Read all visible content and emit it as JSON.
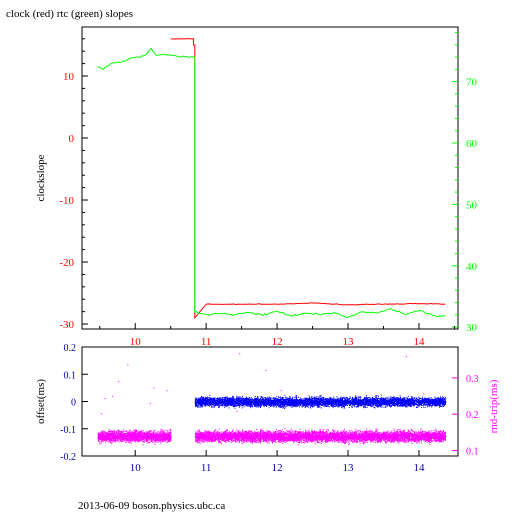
{
  "page": {
    "title": "clock (red) rtc (green) slopes",
    "footer": "2013-06-09 boson.physics.ubc.ca"
  },
  "colors": {
    "red": "#ff0000",
    "green": "#00ff00",
    "blue": "#0000ff",
    "magenta": "#ff00ff",
    "navy": "#0000aa",
    "axis": "#000000"
  },
  "chart_data": [
    {
      "type": "line",
      "title": "clock (red) rtc (green) slopes",
      "ylabel": "clockslope",
      "xlim": [
        9.25,
        14.55
      ],
      "ylim": [
        -30.8,
        17.9
      ],
      "y2lim": [
        29.7,
        78.9
      ],
      "x_ticks": [
        10,
        11,
        12,
        13,
        14
      ],
      "y_ticks": [
        -30,
        -20,
        -10,
        0,
        10
      ],
      "y2_ticks": [
        30,
        40,
        50,
        60,
        70
      ],
      "series": [
        {
          "color": "red",
          "axis": "left",
          "x": [
            10.5,
            10.82,
            10.82,
            10.84,
            10.84,
            11.0,
            11.5,
            12.0,
            12.5,
            13.0,
            13.5,
            14.0,
            14.37
          ],
          "y": [
            16.0,
            16.0,
            15.0,
            15.0,
            -29.0,
            -26.8,
            -26.8,
            -26.8,
            -26.6,
            -26.9,
            -26.8,
            -26.7,
            -26.8
          ]
        },
        {
          "color": "green",
          "axis": "right",
          "x": [
            9.47,
            9.55,
            9.65,
            9.75,
            9.85,
            9.95,
            10.05,
            10.15,
            10.22,
            10.3,
            10.4,
            10.5,
            10.6,
            10.7,
            10.8,
            10.84,
            10.84,
            11.0,
            11.2,
            11.4,
            11.6,
            11.8,
            12.0,
            12.2,
            12.4,
            12.6,
            12.8,
            13.0,
            13.2,
            13.4,
            13.6,
            13.8,
            14.0,
            14.2,
            14.37
          ],
          "y": [
            72.5,
            72.0,
            72.9,
            73.2,
            73.3,
            73.9,
            74.0,
            74.4,
            75.4,
            74.3,
            74.5,
            74.3,
            74.1,
            74.1,
            74.1,
            74.0,
            32.4,
            32.1,
            32.2,
            32.0,
            32.4,
            31.9,
            32.6,
            31.8,
            32.3,
            32.0,
            32.4,
            31.6,
            32.5,
            32.3,
            33.0,
            32.1,
            32.7,
            31.9,
            31.8
          ]
        }
      ]
    },
    {
      "type": "scatter",
      "ylabel": "offset(ms)",
      "y2label": "rnd-trip(ms)",
      "xlim": [
        9.25,
        14.55
      ],
      "ylim": [
        -0.2,
        0.2
      ],
      "y2lim": [
        0.085,
        0.385
      ],
      "x_ticks": [
        10,
        11,
        12,
        13,
        14
      ],
      "y_ticks": [
        -0.2,
        -0.1,
        0,
        0.1,
        0.2
      ],
      "y2_ticks": [
        0.1,
        0.2,
        0.3
      ],
      "series": [
        {
          "color": "blue",
          "axis": "left",
          "x_range": [
            10.84,
            14.37
          ],
          "y_center": 0.0,
          "y_spread": 0.022
        },
        {
          "color": "magenta",
          "axis": "right",
          "x_ranges": [
            [
              9.47,
              10.5
            ],
            [
              10.84,
              14.37
            ]
          ],
          "y_center": 0.14,
          "y_spread": 0.018
        }
      ]
    }
  ]
}
